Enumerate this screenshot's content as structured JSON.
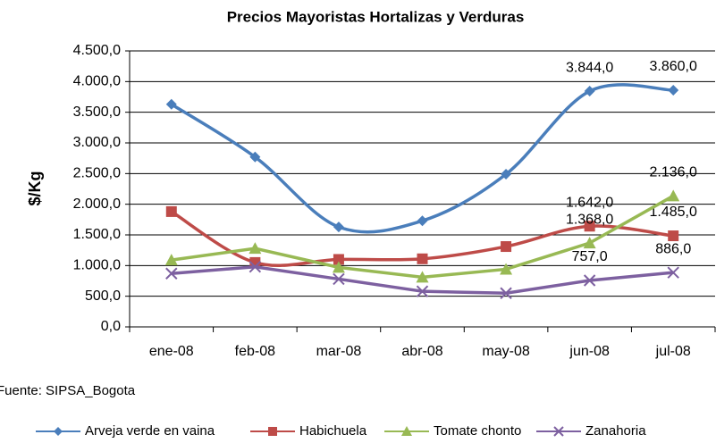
{
  "chart_data": {
    "type": "line",
    "title": "Precios Mayoristas Hortalizas y Verduras",
    "ylabel": "$/Kg",
    "source": "Fuente: SIPSA_Bogota",
    "categories": [
      "ene-08",
      "feb-08",
      "mar-08",
      "abr-08",
      "may-08",
      "jun-08",
      "jul-08"
    ],
    "ylim": [
      0,
      4500
    ],
    "yticks": [
      {
        "value": 0,
        "label": "0,0"
      },
      {
        "value": 500,
        "label": "500,0"
      },
      {
        "value": 1000,
        "label": "1.000,0"
      },
      {
        "value": 1500,
        "label": "1.500,0"
      },
      {
        "value": 2000,
        "label": "2.000,0"
      },
      {
        "value": 2500,
        "label": "2.500,0"
      },
      {
        "value": 3000,
        "label": "3.000,0"
      },
      {
        "value": 3500,
        "label": "3.500,0"
      },
      {
        "value": 4000,
        "label": "4.000,0"
      },
      {
        "value": 4500,
        "label": "4.500,0"
      }
    ],
    "grid": true,
    "legend": "bottom",
    "series": [
      {
        "name": "Arveja verde en vaina",
        "color": "#4a7ebb",
        "marker": "diamond",
        "smooth": true,
        "values": [
          3630,
          2770,
          1630,
          1730,
          2490,
          3844,
          3860
        ],
        "value_labels": [
          null,
          null,
          null,
          null,
          null,
          "3.844,0",
          "3.860,0"
        ]
      },
      {
        "name": "Habichuela",
        "color": "#be4b48",
        "marker": "square",
        "smooth": true,
        "values": [
          1880,
          1050,
          1100,
          1110,
          1310,
          1642,
          1485
        ],
        "value_labels": [
          null,
          null,
          null,
          null,
          null,
          "1.642,0",
          "1.485,0"
        ]
      },
      {
        "name": "Tomate chonto",
        "color": "#98b954",
        "marker": "triangle",
        "smooth": false,
        "values": [
          1090,
          1280,
          970,
          810,
          940,
          1368,
          2136
        ],
        "value_labels": [
          null,
          null,
          null,
          null,
          null,
          "1.368,0",
          "2.136,0"
        ]
      },
      {
        "name": "Zanahoria",
        "color": "#7d60a0",
        "marker": "x",
        "smooth": false,
        "values": [
          870,
          980,
          780,
          580,
          550,
          757,
          886
        ],
        "value_labels": [
          null,
          null,
          null,
          null,
          null,
          "757,0",
          "886,0"
        ]
      }
    ]
  }
}
